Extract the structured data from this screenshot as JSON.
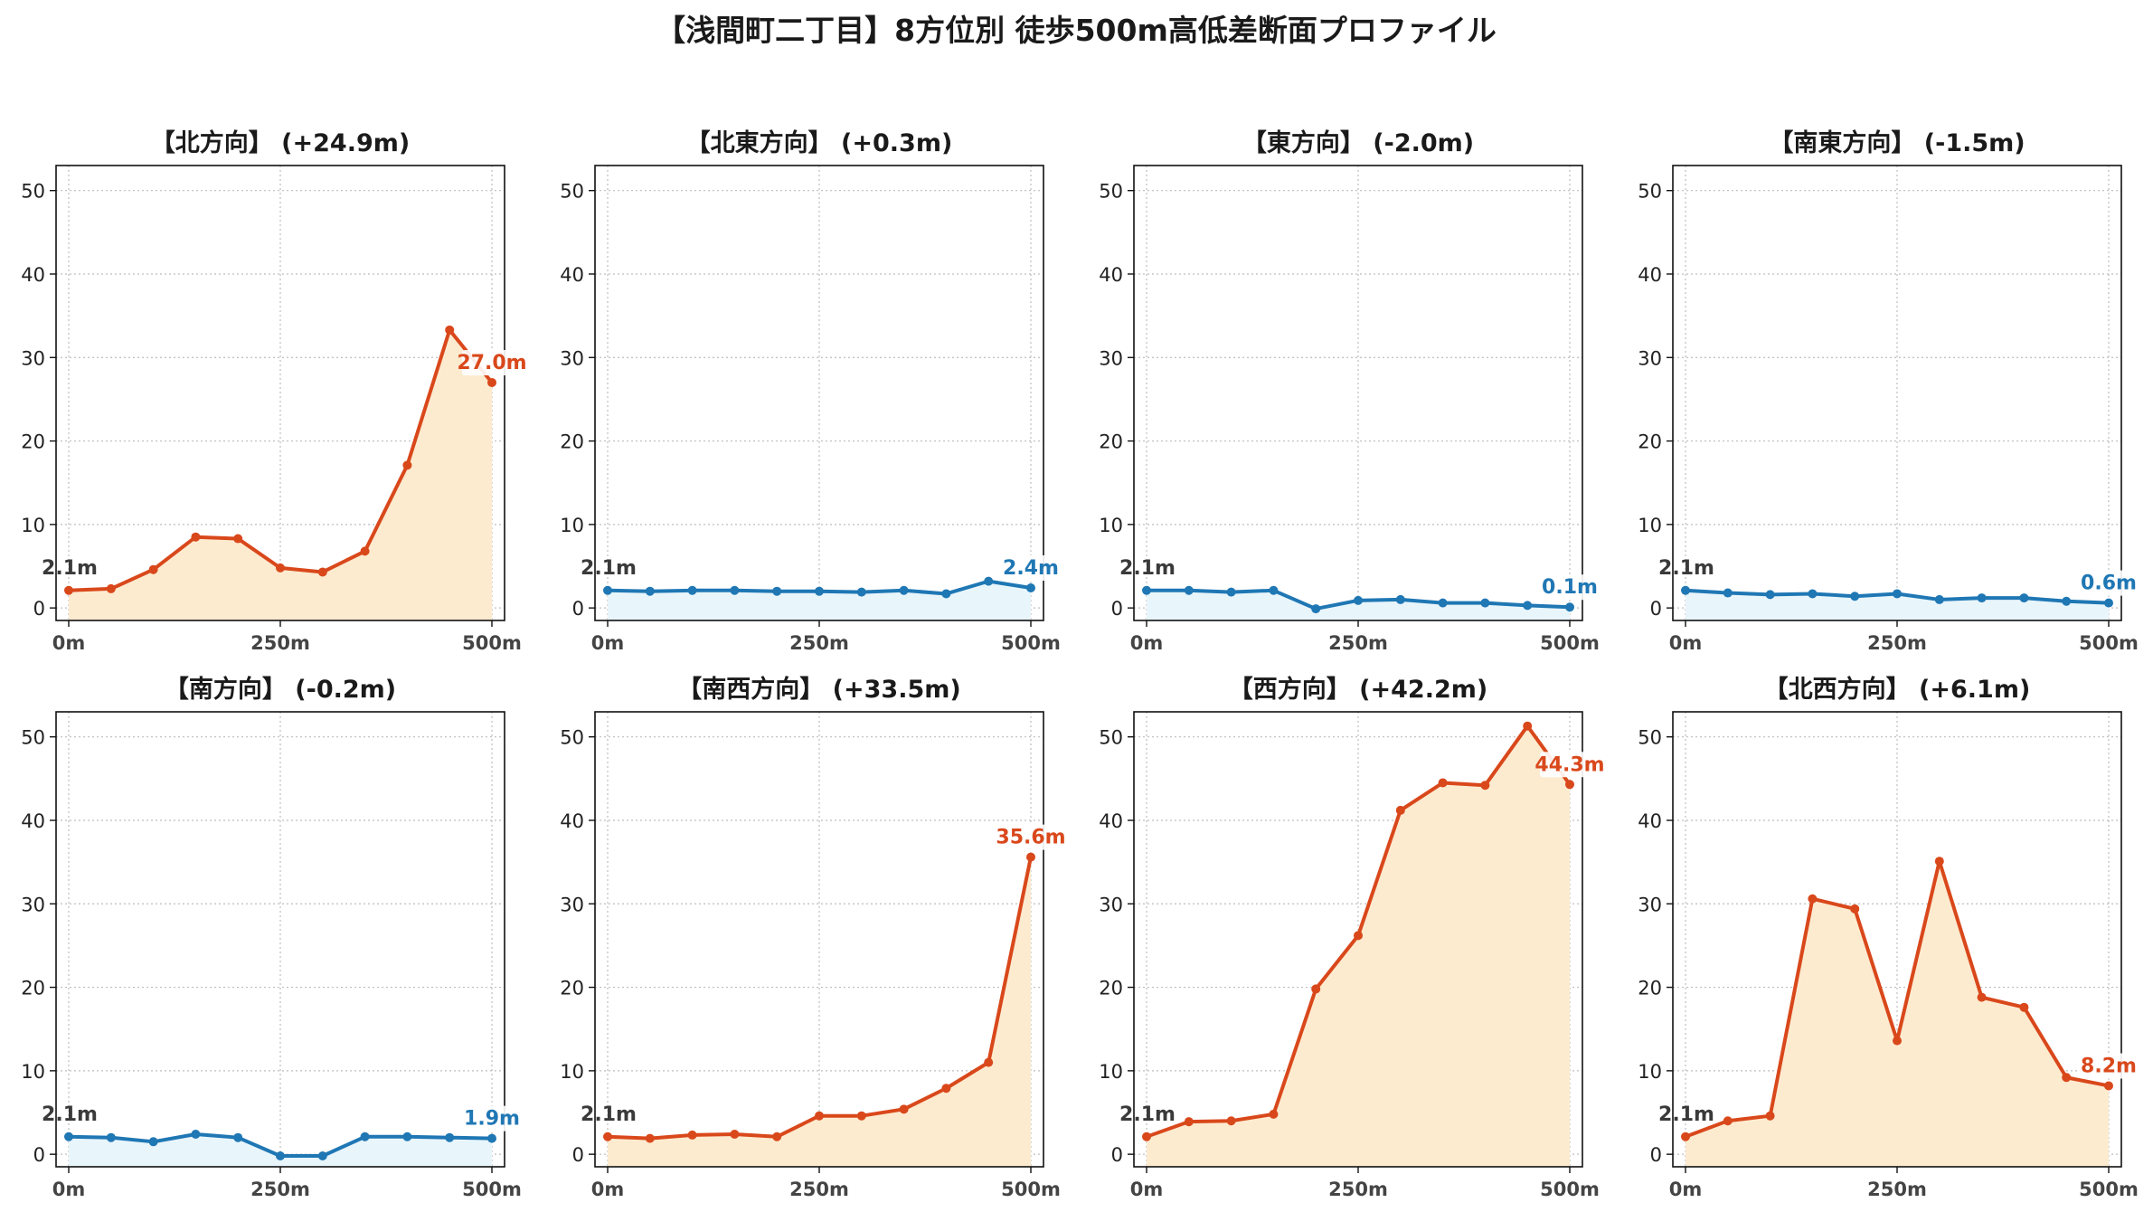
{
  "title": "【浅間町二丁目】8方位別 徒歩500m高低差断面プロファイル",
  "colors": {
    "up_line": "#d9481b",
    "up_fill": "#fdebd0",
    "down_line": "#1f77b4",
    "down_fill": "#e8f5fb",
    "start_label": "#3a3a3a",
    "grid": "#bdbdbd"
  },
  "chart_data": [
    {
      "type": "area",
      "title": "【北方向】 (+24.9m)",
      "trend": "up",
      "x": [
        0,
        50,
        100,
        150,
        200,
        250,
        300,
        350,
        400,
        450,
        500
      ],
      "y": [
        2.1,
        2.3,
        4.6,
        8.5,
        8.3,
        4.8,
        4.3,
        6.8,
        17.1,
        33.3,
        27.0
      ],
      "xticks": [
        "0m",
        "250m",
        "500m"
      ],
      "yticks": [
        "0",
        "10",
        "20",
        "30",
        "40",
        "50"
      ],
      "ylim": [
        -1.5,
        53
      ],
      "start_label": "2.1m",
      "end_label": "27.0m",
      "grid": true
    },
    {
      "type": "area",
      "title": "【北東方向】 (+0.3m)",
      "trend": "down",
      "x": [
        0,
        50,
        100,
        150,
        200,
        250,
        300,
        350,
        400,
        450,
        500
      ],
      "y": [
        2.1,
        2.0,
        2.1,
        2.1,
        2.0,
        2.0,
        1.9,
        2.1,
        1.7,
        3.2,
        2.4
      ],
      "xticks": [
        "0m",
        "250m",
        "500m"
      ],
      "yticks": [
        "0",
        "10",
        "20",
        "30",
        "40",
        "50"
      ],
      "ylim": [
        -1.5,
        53
      ],
      "start_label": "2.1m",
      "end_label": "2.4m",
      "grid": true
    },
    {
      "type": "area",
      "title": "【東方向】 (-2.0m)",
      "trend": "down",
      "x": [
        0,
        50,
        100,
        150,
        200,
        250,
        300,
        350,
        400,
        450,
        500
      ],
      "y": [
        2.1,
        2.1,
        1.9,
        2.1,
        -0.1,
        0.9,
        1.0,
        0.6,
        0.6,
        0.3,
        0.1
      ],
      "xticks": [
        "0m",
        "250m",
        "500m"
      ],
      "yticks": [
        "0",
        "10",
        "20",
        "30",
        "40",
        "50"
      ],
      "ylim": [
        -1.5,
        53
      ],
      "start_label": "2.1m",
      "end_label": "0.1m",
      "grid": true
    },
    {
      "type": "area",
      "title": "【南東方向】 (-1.5m)",
      "trend": "down",
      "x": [
        0,
        50,
        100,
        150,
        200,
        250,
        300,
        350,
        400,
        450,
        500
      ],
      "y": [
        2.1,
        1.8,
        1.6,
        1.7,
        1.4,
        1.7,
        1.0,
        1.2,
        1.2,
        0.8,
        0.6
      ],
      "xticks": [
        "0m",
        "250m",
        "500m"
      ],
      "yticks": [
        "0",
        "10",
        "20",
        "30",
        "40",
        "50"
      ],
      "ylim": [
        -1.5,
        53
      ],
      "start_label": "2.1m",
      "end_label": "0.6m",
      "grid": true
    },
    {
      "type": "area",
      "title": "【南方向】 (-0.2m)",
      "trend": "down",
      "x": [
        0,
        50,
        100,
        150,
        200,
        250,
        300,
        350,
        400,
        450,
        500
      ],
      "y": [
        2.1,
        2.0,
        1.5,
        2.4,
        2.0,
        -0.2,
        -0.2,
        2.1,
        2.1,
        2.0,
        1.9
      ],
      "xticks": [
        "0m",
        "250m",
        "500m"
      ],
      "yticks": [
        "0",
        "10",
        "20",
        "30",
        "40",
        "50"
      ],
      "ylim": [
        -1.5,
        53
      ],
      "start_label": "2.1m",
      "end_label": "1.9m",
      "grid": true
    },
    {
      "type": "area",
      "title": "【南西方向】 (+33.5m)",
      "trend": "up",
      "x": [
        0,
        50,
        100,
        150,
        200,
        250,
        300,
        350,
        400,
        450,
        500
      ],
      "y": [
        2.1,
        1.9,
        2.3,
        2.4,
        2.1,
        4.6,
        4.6,
        5.4,
        7.9,
        11.0,
        35.6
      ],
      "xticks": [
        "0m",
        "250m",
        "500m"
      ],
      "yticks": [
        "0",
        "10",
        "20",
        "30",
        "40",
        "50"
      ],
      "ylim": [
        -1.5,
        53
      ],
      "start_label": "2.1m",
      "end_label": "35.6m",
      "grid": true
    },
    {
      "type": "area",
      "title": "【西方向】 (+42.2m)",
      "trend": "up",
      "x": [
        0,
        50,
        100,
        150,
        200,
        250,
        300,
        350,
        400,
        450,
        500
      ],
      "y": [
        2.1,
        3.9,
        4.0,
        4.8,
        19.8,
        26.2,
        41.2,
        44.5,
        44.2,
        51.3,
        44.3
      ],
      "xticks": [
        "0m",
        "250m",
        "500m"
      ],
      "yticks": [
        "0",
        "10",
        "20",
        "30",
        "40",
        "50"
      ],
      "ylim": [
        -1.5,
        53
      ],
      "start_label": "2.1m",
      "end_label": "44.3m",
      "grid": true
    },
    {
      "type": "area",
      "title": "【北西方向】 (+6.1m)",
      "trend": "up",
      "x": [
        0,
        50,
        100,
        150,
        200,
        250,
        300,
        350,
        400,
        450,
        500
      ],
      "y": [
        2.1,
        4.0,
        4.6,
        30.6,
        29.4,
        13.6,
        35.1,
        18.8,
        17.6,
        9.2,
        8.2
      ],
      "xticks": [
        "0m",
        "250m",
        "500m"
      ],
      "yticks": [
        "0",
        "10",
        "20",
        "30",
        "40",
        "50"
      ],
      "ylim": [
        -1.5,
        53
      ],
      "start_label": "2.1m",
      "end_label": "8.2m",
      "grid": true
    }
  ]
}
